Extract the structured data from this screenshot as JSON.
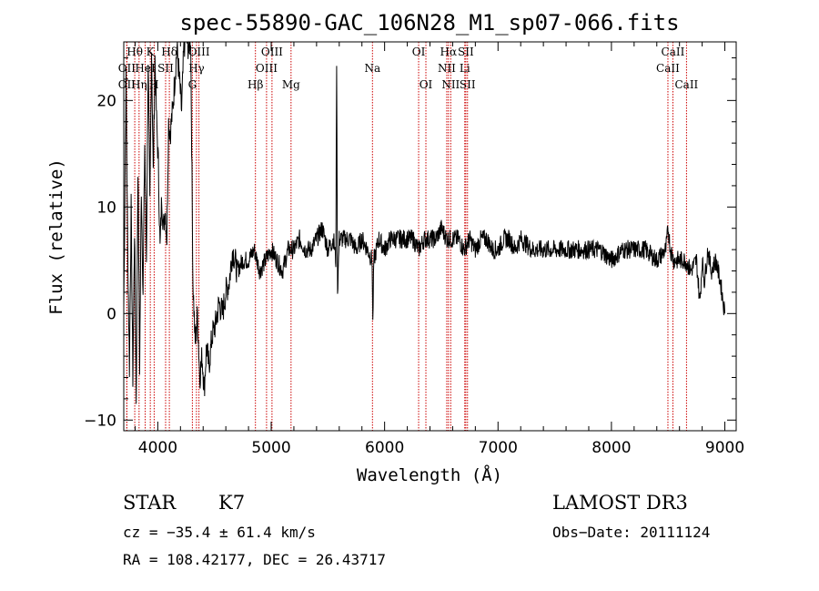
{
  "chart_data": {
    "type": "line",
    "title": "spec-55890-GAC_106N28_M1_sp07-066.fits",
    "xlabel": "Wavelength (Å)",
    "ylabel": "Flux (relative)",
    "xlim": [
      3700,
      9100
    ],
    "ylim": [
      -11,
      25.5
    ],
    "x_ticks": [
      4000,
      5000,
      6000,
      7000,
      8000,
      9000
    ],
    "y_ticks": [
      -10,
      0,
      10,
      20
    ],
    "grid": false,
    "series_color": "#000000",
    "line_color": "#cc0000",
    "series": [
      {
        "x": [
          3700,
          3720,
          3735,
          3750,
          3765,
          3780,
          3795,
          3810,
          3825,
          3840,
          3855,
          3870,
          3885,
          3900,
          3915,
          3930,
          3945,
          3960,
          3975,
          3990,
          4005,
          4020,
          4035,
          4050,
          4065,
          4080,
          4095,
          4110,
          4130,
          4150,
          4170,
          4190,
          4210,
          4230,
          4250,
          4270,
          4290,
          4310,
          4330,
          4350,
          4370,
          4390,
          4410,
          4430,
          4450,
          4480,
          4510,
          4540,
          4570,
          4600,
          4630,
          4660,
          4700,
          4750,
          4800,
          4850,
          4900,
          4950,
          5000,
          5050,
          5100,
          5150,
          5200,
          5250,
          5300,
          5350,
          5400,
          5450,
          5500,
          5550,
          5570,
          5577,
          5585,
          5600,
          5650,
          5700,
          5750,
          5800,
          5850,
          5890,
          5896,
          5905,
          5950,
          6000,
          6050,
          6100,
          6150,
          6200,
          6250,
          6300,
          6350,
          6400,
          6450,
          6500,
          6550,
          6600,
          6650,
          6700,
          6750,
          6800,
          6850,
          6900,
          6950,
          7000,
          7050,
          7100,
          7150,
          7200,
          7300,
          7400,
          7500,
          7600,
          7700,
          7800,
          7900,
          8000,
          8100,
          8200,
          8300,
          8400,
          8480,
          8500,
          8520,
          8550,
          8600,
          8650,
          8700,
          8750,
          8780,
          8800,
          8820,
          8850,
          8880,
          8920,
          8960,
          9000
        ],
        "y": [
          0.5,
          22,
          6,
          -5,
          10,
          -6,
          8,
          -8,
          14,
          -5,
          12,
          2,
          16,
          5,
          24,
          10,
          25,
          13,
          24,
          18,
          14,
          6,
          11,
          8,
          10,
          7,
          18,
          17,
          19,
          22,
          25,
          22,
          19,
          25,
          26,
          25,
          26,
          3,
          -3,
          0,
          -6,
          -4,
          -7,
          -3,
          -5,
          -2,
          -1,
          1,
          0,
          2,
          3,
          6,
          4,
          5,
          5,
          6,
          4,
          5,
          6,
          5,
          4,
          6,
          6,
          7,
          6,
          6,
          7,
          8,
          6,
          7,
          5,
          24,
          2,
          7,
          7,
          7,
          6,
          7,
          6,
          5,
          -1,
          5,
          7,
          6,
          7,
          7,
          7,
          7,
          7,
          6,
          7,
          7,
          7,
          8,
          7,
          7,
          7,
          6,
          7,
          6,
          7,
          7,
          6,
          6,
          7,
          7,
          6,
          7,
          6,
          6,
          6,
          6,
          6,
          6,
          6,
          5,
          6,
          6,
          6,
          5,
          6,
          8,
          6,
          5,
          5,
          5,
          4,
          5,
          1,
          5,
          3,
          6,
          4,
          5,
          3,
          0
        ]
      }
    ],
    "spectral_lines": [
      {
        "label": "Hθ",
        "wl": 3797,
        "row": 0
      },
      {
        "label": "OII",
        "wl": 3727,
        "row": 1
      },
      {
        "label": "OII",
        "wl": 3727,
        "row": 2
      },
      {
        "label": "Hη",
        "wl": 3835,
        "row": 2
      },
      {
        "label": "HeI",
        "wl": 3889,
        "row": 1
      },
      {
        "label": "K",
        "wl": 3934,
        "row": 0
      },
      {
        "label": "H",
        "wl": 3968,
        "row": 2
      },
      {
        "label": "SII",
        "wl": 4069,
        "row": 1
      },
      {
        "label": "Hδ",
        "wl": 4102,
        "row": 0
      },
      {
        "label": "OIII",
        "wl": 4363,
        "row": 0
      },
      {
        "label": "Hγ",
        "wl": 4341,
        "row": 1
      },
      {
        "label": "G",
        "wl": 4305,
        "row": 2
      },
      {
        "label": "Hβ",
        "wl": 4861,
        "row": 2
      },
      {
        "label": "OIII",
        "wl": 5007,
        "row": 0
      },
      {
        "label": "OIII",
        "wl": 4959,
        "row": 1
      },
      {
        "label": "Mg",
        "wl": 5175,
        "row": 2
      },
      {
        "label": "Na",
        "wl": 5893,
        "row": 1
      },
      {
        "label": "OI",
        "wl": 6300,
        "row": 0
      },
      {
        "label": "OI",
        "wl": 6364,
        "row": 2
      },
      {
        "label": "Hα",
        "wl": 6563,
        "row": 0
      },
      {
        "label": "NII",
        "wl": 6548,
        "row": 1
      },
      {
        "label": "NII",
        "wl": 6583,
        "row": 2
      },
      {
        "label": "SII",
        "wl": 6716,
        "row": 0
      },
      {
        "label": "Li",
        "wl": 6707,
        "row": 1
      },
      {
        "label": "SII",
        "wl": 6731,
        "row": 2
      },
      {
        "label": "CaII",
        "wl": 8542,
        "row": 0
      },
      {
        "label": "CaII",
        "wl": 8498,
        "row": 1
      },
      {
        "label": "CaII",
        "wl": 8662,
        "row": 2
      }
    ]
  },
  "info": {
    "class_label": "STAR",
    "subclass": "K7",
    "survey": "LAMOST DR3",
    "redshift": "cz = −35.4 ± 61.4 km/s",
    "obs_date": "Obs−Date: 20111124",
    "coords": "RA = 108.42177, DEC =  26.43717"
  }
}
